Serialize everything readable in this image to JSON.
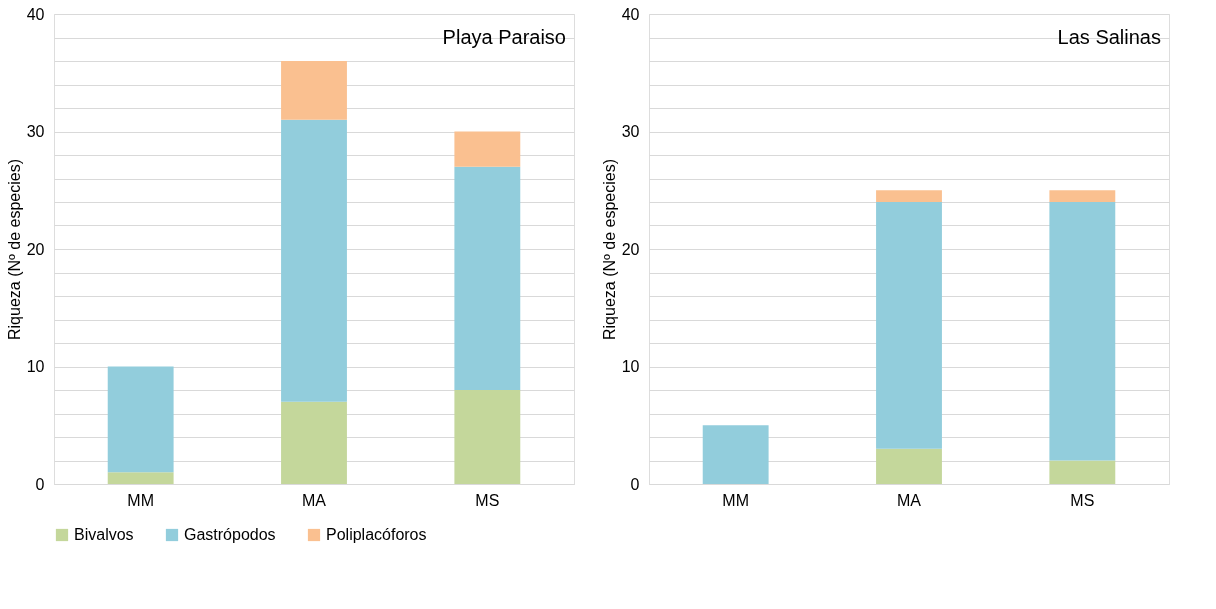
{
  "chart_data": [
    {
      "type": "bar",
      "title": "Playa Paraiso",
      "ylabel": "Riqueza (Nº de especies)",
      "categories": [
        "MM",
        "MA",
        "MS"
      ],
      "stacked": true,
      "legend": "bottom",
      "grid": "y",
      "ylim": [
        0,
        40
      ],
      "yticks": [
        0,
        {
          "value": 2,
          "label": null
        },
        {
          "value": 4,
          "label": null
        },
        {
          "value": 6,
          "label": null
        },
        {
          "value": 8,
          "label": null
        },
        10,
        {
          "value": 12,
          "label": null
        },
        {
          "value": 14,
          "label": null
        },
        {
          "value": 16,
          "label": null
        },
        {
          "value": 18,
          "label": null
        },
        20,
        {
          "value": 22,
          "label": null
        },
        {
          "value": 24,
          "label": null
        },
        {
          "value": 26,
          "label": null
        },
        {
          "value": 28,
          "label": null
        },
        30,
        {
          "value": 32,
          "label": null
        },
        {
          "value": 34,
          "label": null
        },
        {
          "value": 36,
          "label": null
        },
        {
          "value": 38,
          "label": null
        },
        40
      ],
      "series": [
        {
          "name": "Bivalvos",
          "color": "#c4d79b",
          "values": [
            1,
            7,
            8
          ]
        },
        {
          "name": "Gastrópodos",
          "color": "#92cddc",
          "values": [
            9,
            24,
            19
          ]
        },
        {
          "name": "Poliplacóforos",
          "color": "#fac090",
          "values": [
            0,
            5,
            3
          ]
        }
      ]
    },
    {
      "type": "bar",
      "title": "Las Salinas",
      "ylabel": "Riqueza (Nº de especies)",
      "categories": [
        "MM",
        "MA",
        "MS"
      ],
      "stacked": true,
      "legend": "bottom",
      "grid": "y",
      "ylim": [
        0,
        40
      ],
      "yticks": [
        0,
        {
          "value": 2,
          "label": null
        },
        {
          "value": 4,
          "label": null
        },
        {
          "value": 6,
          "label": null
        },
        {
          "value": 8,
          "label": null
        },
        10,
        {
          "value": 12,
          "label": null
        },
        {
          "value": 14,
          "label": null
        },
        {
          "value": 16,
          "label": null
        },
        {
          "value": 18,
          "label": null
        },
        20,
        {
          "value": 22,
          "label": null
        },
        {
          "value": 24,
          "label": null
        },
        {
          "value": 26,
          "label": null
        },
        {
          "value": 28,
          "label": null
        },
        30,
        {
          "value": 32,
          "label": null
        },
        {
          "value": 34,
          "label": null
        },
        {
          "value": 36,
          "label": null
        },
        {
          "value": 38,
          "label": null
        },
        40
      ],
      "series": [
        {
          "name": "Bivalvos",
          "color": "#c4d79b",
          "values": [
            0,
            3,
            2
          ]
        },
        {
          "name": "Gastrópodos",
          "color": "#92cddc",
          "values": [
            5,
            21,
            22
          ]
        },
        {
          "name": "Poliplacóforos",
          "color": "#fac090",
          "values": [
            0,
            1,
            1
          ]
        }
      ]
    }
  ]
}
